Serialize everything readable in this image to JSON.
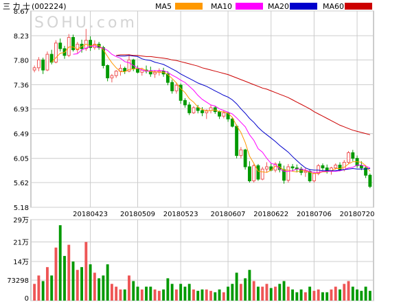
{
  "stock": {
    "name": "三 力 士",
    "code": "(002224)"
  },
  "watermark": "SOHU.com",
  "colors": {
    "up": "#ee5555",
    "down": "#009900",
    "ma5": "#ff9900",
    "ma10": "#ff00ff",
    "ma20": "#0000cc",
    "ma60": "#cc0000",
    "grid": "#cccccc"
  },
  "legend": [
    {
      "name": "MA5",
      "color": "#ff9900"
    },
    {
      "name": "MA10",
      "color": "#ff00ff"
    },
    {
      "name": "MA20",
      "color": "#0000cc"
    },
    {
      "name": "MA60",
      "color": "#cc0000"
    }
  ],
  "chart_data": {
    "type": "candlestick",
    "price_ticks": [
      "8.67",
      "8.23",
      "7.80",
      "7.36",
      "6.93",
      "6.49",
      "6.05",
      "5.62",
      "5.18"
    ],
    "price_range": [
      5.18,
      8.67
    ],
    "date_labels": [
      {
        "label": "20180423",
        "index": 13
      },
      {
        "label": "20180509",
        "index": 24
      },
      {
        "label": "20180523",
        "index": 34
      },
      {
        "label": "20180607",
        "index": 45
      },
      {
        "label": "20180622",
        "index": 55
      },
      {
        "label": "20180706",
        "index": 65
      },
      {
        "label": "20180720",
        "index": 75
      }
    ],
    "volume_ticks": [
      "29万",
      "21万",
      "14万",
      "73298",
      "0"
    ],
    "volume_range": [
      0,
      290000
    ],
    "grid": true,
    "candles": [
      [
        7.62,
        7.7,
        7.58,
        7.66,
        60000
      ],
      [
        7.66,
        7.85,
        7.6,
        7.8,
        90000
      ],
      [
        7.8,
        7.84,
        7.55,
        7.62,
        70000
      ],
      [
        7.62,
        7.95,
        7.6,
        7.9,
        120000
      ],
      [
        7.9,
        7.98,
        7.72,
        7.76,
        90000
      ],
      [
        7.76,
        8.15,
        7.74,
        8.1,
        190000
      ],
      [
        8.1,
        8.18,
        7.95,
        8.0,
        270000
      ],
      [
        8.0,
        8.05,
        7.82,
        7.88,
        160000
      ],
      [
        7.88,
        8.26,
        7.85,
        8.2,
        200000
      ],
      [
        8.2,
        8.25,
        7.95,
        7.98,
        140000
      ],
      [
        7.98,
        8.12,
        7.92,
        8.08,
        110000
      ],
      [
        8.08,
        8.16,
        7.93,
        8.0,
        120000
      ],
      [
        8.0,
        8.35,
        7.96,
        8.15,
        210000
      ],
      [
        8.15,
        8.22,
        7.96,
        8.02,
        130000
      ],
      [
        8.02,
        8.15,
        7.98,
        8.08,
        100000
      ],
      [
        8.08,
        8.12,
        7.98,
        8.02,
        80000
      ],
      [
        8.02,
        8.05,
        7.65,
        7.7,
        90000
      ],
      [
        7.7,
        7.72,
        7.42,
        7.48,
        130000
      ],
      [
        7.48,
        7.55,
        7.4,
        7.52,
        60000
      ],
      [
        7.52,
        7.62,
        7.48,
        7.6,
        50000
      ],
      [
        7.6,
        7.72,
        7.52,
        7.65,
        40000
      ],
      [
        7.65,
        7.68,
        7.55,
        7.6,
        40000
      ],
      [
        7.6,
        7.9,
        7.58,
        7.8,
        90000
      ],
      [
        7.8,
        7.82,
        7.6,
        7.64,
        70000
      ],
      [
        7.64,
        7.7,
        7.56,
        7.58,
        50000
      ],
      [
        7.58,
        7.66,
        7.52,
        7.62,
        40000
      ],
      [
        7.62,
        7.7,
        7.56,
        7.6,
        50000
      ],
      [
        7.6,
        7.68,
        7.5,
        7.55,
        50000
      ],
      [
        7.55,
        7.62,
        7.48,
        7.58,
        40000
      ],
      [
        7.58,
        7.65,
        7.52,
        7.6,
        35000
      ],
      [
        7.6,
        7.66,
        7.5,
        7.55,
        40000
      ],
      [
        7.55,
        7.6,
        7.35,
        7.4,
        80000
      ],
      [
        7.4,
        7.45,
        7.2,
        7.25,
        60000
      ],
      [
        7.25,
        7.4,
        7.2,
        7.35,
        40000
      ],
      [
        7.35,
        7.38,
        7.02,
        7.08,
        60000
      ],
      [
        7.08,
        7.12,
        6.95,
        7.0,
        50000
      ],
      [
        7.0,
        7.05,
        6.82,
        6.86,
        60000
      ],
      [
        6.86,
        6.98,
        6.84,
        6.95,
        40000
      ],
      [
        6.95,
        7.0,
        6.85,
        6.9,
        35000
      ],
      [
        6.9,
        6.96,
        6.8,
        6.86,
        40000
      ],
      [
        6.86,
        6.92,
        6.75,
        6.9,
        40000
      ],
      [
        6.9,
        7.0,
        6.85,
        6.95,
        35000
      ],
      [
        6.95,
        6.98,
        6.84,
        6.88,
        30000
      ],
      [
        6.88,
        6.9,
        6.75,
        6.8,
        40000
      ],
      [
        6.8,
        6.9,
        6.76,
        6.86,
        30000
      ],
      [
        6.86,
        6.88,
        6.7,
        6.75,
        50000
      ],
      [
        6.75,
        6.78,
        6.6,
        6.62,
        60000
      ],
      [
        6.62,
        6.65,
        6.05,
        6.1,
        100000
      ],
      [
        6.1,
        6.25,
        6.05,
        6.2,
        60000
      ],
      [
        6.2,
        6.22,
        5.85,
        5.9,
        80000
      ],
      [
        5.9,
        6.0,
        5.62,
        5.65,
        110000
      ],
      [
        5.65,
        5.95,
        5.62,
        5.92,
        70000
      ],
      [
        5.92,
        5.95,
        5.65,
        5.68,
        50000
      ],
      [
        5.68,
        5.9,
        5.66,
        5.86,
        50000
      ],
      [
        5.86,
        5.98,
        5.8,
        5.9,
        60000
      ],
      [
        5.9,
        5.96,
        5.82,
        5.84,
        45000
      ],
      [
        5.84,
        5.98,
        5.8,
        5.95,
        50000
      ],
      [
        5.95,
        6.0,
        5.8,
        5.85,
        60000
      ],
      [
        5.85,
        5.92,
        5.6,
        5.66,
        70000
      ],
      [
        5.66,
        5.95,
        5.62,
        5.9,
        50000
      ],
      [
        5.9,
        5.95,
        5.82,
        5.88,
        40000
      ],
      [
        5.88,
        5.94,
        5.8,
        5.86,
        30000
      ],
      [
        5.86,
        5.9,
        5.75,
        5.8,
        40000
      ],
      [
        5.8,
        5.88,
        5.72,
        5.82,
        30000
      ],
      [
        5.82,
        5.86,
        5.62,
        5.65,
        50000
      ],
      [
        5.65,
        5.8,
        5.62,
        5.78,
        35000
      ],
      [
        5.78,
        5.95,
        5.75,
        5.92,
        40000
      ],
      [
        5.92,
        5.96,
        5.84,
        5.88,
        30000
      ],
      [
        5.88,
        5.94,
        5.78,
        5.82,
        30000
      ],
      [
        5.82,
        5.9,
        5.76,
        5.88,
        40000
      ],
      [
        5.88,
        5.96,
        5.85,
        5.93,
        50000
      ],
      [
        5.93,
        5.98,
        5.82,
        5.85,
        40000
      ],
      [
        5.85,
        6.02,
        5.82,
        5.98,
        60000
      ],
      [
        5.98,
        6.18,
        5.95,
        6.15,
        70000
      ],
      [
        6.15,
        6.2,
        6.0,
        6.05,
        50000
      ],
      [
        6.05,
        6.1,
        5.88,
        5.92,
        40000
      ],
      [
        5.92,
        6.0,
        5.84,
        5.88,
        35000
      ],
      [
        5.88,
        5.92,
        5.7,
        5.75,
        50000
      ],
      [
        5.75,
        5.78,
        5.52,
        5.55,
        35000
      ]
    ],
    "series": [
      {
        "name": "MA5",
        "color": "#ff9900",
        "values": [
          null,
          null,
          null,
          null,
          7.76,
          7.84,
          7.92,
          7.93,
          8.03,
          8.03,
          7.99,
          8.04,
          8.08,
          8.05,
          8.07,
          8.06,
          7.98,
          7.86,
          7.75,
          7.66,
          7.59,
          7.59,
          7.63,
          7.64,
          7.65,
          7.65,
          7.61,
          7.59,
          7.59,
          7.58,
          7.58,
          7.54,
          7.47,
          7.39,
          7.29,
          7.22,
          7.11,
          7.05,
          6.96,
          6.92,
          6.89,
          6.9,
          6.91,
          6.88,
          6.88,
          6.85,
          6.78,
          6.63,
          6.51,
          6.33,
          6.09,
          5.96,
          5.82,
          5.81,
          5.8,
          5.84,
          5.91,
          5.9,
          5.84,
          5.84,
          5.82,
          5.81,
          5.83,
          5.83,
          5.8,
          5.78,
          5.79,
          5.81,
          5.81,
          5.83,
          5.87,
          5.87,
          5.89,
          5.95,
          5.99,
          5.99,
          5.98,
          5.92,
          5.82
        ]
      },
      {
        "name": "MA10",
        "color": "#ff00ff",
        "values": [
          null,
          null,
          null,
          null,
          null,
          null,
          null,
          null,
          null,
          7.9,
          7.91,
          7.98,
          8.01,
          8.04,
          8.05,
          8.02,
          8.01,
          7.97,
          7.9,
          7.86,
          7.83,
          7.77,
          7.75,
          7.7,
          7.66,
          7.62,
          7.6,
          7.61,
          7.61,
          7.61,
          7.61,
          7.58,
          7.53,
          7.49,
          7.44,
          7.4,
          7.33,
          7.26,
          7.17,
          7.1,
          7.05,
          7.0,
          6.98,
          6.93,
          6.9,
          6.87,
          6.84,
          6.77,
          6.69,
          6.61,
          6.47,
          6.37,
          6.22,
          6.16,
          6.05,
          5.96,
          5.94,
          5.86,
          5.82,
          5.82,
          5.83,
          5.86,
          5.86,
          5.84,
          5.82,
          5.8,
          5.8,
          5.82,
          5.82,
          5.82,
          5.82,
          5.83,
          5.85,
          5.88,
          5.89,
          5.93,
          5.93,
          5.91,
          5.88
        ]
      },
      {
        "name": "MA20",
        "color": "#0000cc",
        "values": [
          null,
          null,
          null,
          null,
          null,
          null,
          null,
          null,
          null,
          null,
          null,
          null,
          null,
          null,
          null,
          null,
          null,
          null,
          null,
          7.88,
          7.87,
          7.87,
          7.88,
          7.87,
          7.86,
          7.82,
          7.8,
          7.79,
          7.76,
          7.74,
          7.72,
          7.68,
          7.64,
          7.6,
          7.55,
          7.51,
          7.47,
          7.43,
          7.39,
          7.36,
          7.33,
          7.29,
          7.25,
          7.21,
          7.17,
          7.14,
          7.09,
          7.02,
          6.93,
          6.85,
          6.76,
          6.69,
          6.6,
          6.53,
          6.47,
          6.41,
          6.35,
          6.28,
          6.22,
          6.16,
          6.08,
          6.01,
          5.94,
          5.88,
          5.85,
          5.84,
          5.84,
          5.83,
          5.83,
          5.83,
          5.83,
          5.84,
          5.85,
          5.86,
          5.87,
          5.86,
          5.86,
          5.86,
          5.87
        ]
      },
      {
        "name": "MA60",
        "color": "#cc0000",
        "values": [
          null,
          null,
          null,
          null,
          null,
          null,
          null,
          null,
          null,
          null,
          null,
          null,
          null,
          null,
          null,
          null,
          null,
          null,
          null,
          7.88,
          7.89,
          7.89,
          7.89,
          7.88,
          7.88,
          7.87,
          7.86,
          7.86,
          7.85,
          7.84,
          7.83,
          7.82,
          7.8,
          7.79,
          7.77,
          7.75,
          7.73,
          7.71,
          7.69,
          7.66,
          7.64,
          7.62,
          7.6,
          7.58,
          7.56,
          7.54,
          7.51,
          7.48,
          7.45,
          7.42,
          7.39,
          7.36,
          7.33,
          7.3,
          7.28,
          7.25,
          7.22,
          7.19,
          7.16,
          7.13,
          7.09,
          7.05,
          7.01,
          6.97,
          6.93,
          6.88,
          6.84,
          6.8,
          6.76,
          6.72,
          6.68,
          6.64,
          6.61,
          6.58,
          6.55,
          6.53,
          6.51,
          6.49,
          6.47
        ]
      }
    ]
  }
}
